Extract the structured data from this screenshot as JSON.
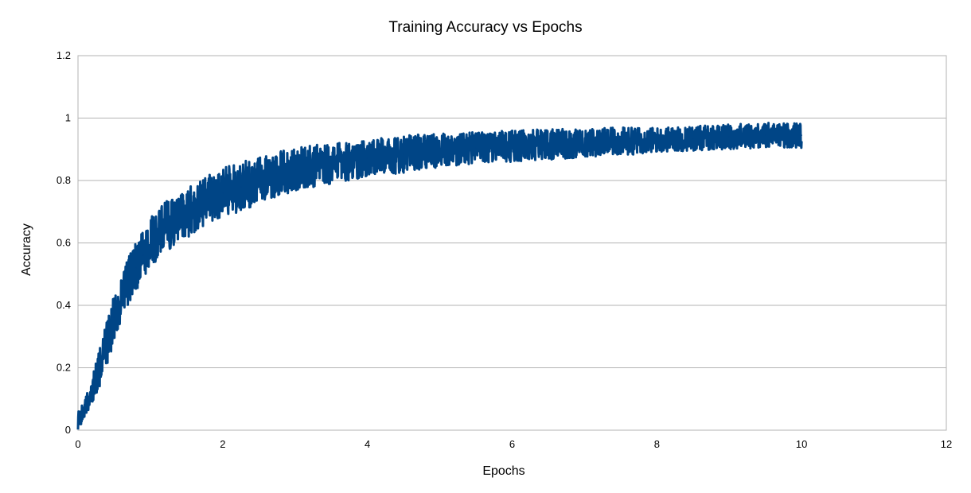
{
  "chart_data": {
    "type": "line",
    "title": "Training Accuracy vs Epochs",
    "xlabel": "Epochs",
    "ylabel": "Accuracy",
    "xlim": [
      0,
      12
    ],
    "ylim": [
      0,
      1.2
    ],
    "x_ticks": [
      0,
      2,
      4,
      6,
      8,
      10,
      12
    ],
    "y_ticks": [
      0,
      0.2,
      0.4,
      0.6,
      0.8,
      1,
      1.2
    ],
    "x_tick_labels": [
      "0",
      "2",
      "4",
      "6",
      "8",
      "10",
      "12"
    ],
    "y_tick_labels": [
      "0",
      "0.2",
      "0.4",
      "0.6",
      "0.8",
      "1",
      "1.2"
    ],
    "grid": "horizontal",
    "legend": "none",
    "series": [
      {
        "color": "#004586",
        "x": [
          0,
          0.1,
          0.2,
          0.3,
          0.4,
          0.5,
          0.6,
          0.7,
          0.8,
          0.9,
          1.0,
          1.2,
          1.4,
          1.6,
          1.8,
          2.0,
          2.25,
          2.5,
          2.75,
          3.0,
          3.5,
          4.0,
          4.5,
          5.0,
          5.5,
          6.0,
          6.5,
          7.0,
          7.5,
          8.0,
          8.5,
          9.0,
          9.5,
          10.0
        ],
        "y": [
          0.03,
          0.07,
          0.13,
          0.2,
          0.28,
          0.36,
          0.42,
          0.48,
          0.52,
          0.56,
          0.6,
          0.65,
          0.68,
          0.71,
          0.74,
          0.76,
          0.78,
          0.8,
          0.82,
          0.835,
          0.855,
          0.87,
          0.885,
          0.895,
          0.905,
          0.91,
          0.915,
          0.92,
          0.925,
          0.93,
          0.935,
          0.94,
          0.945,
          0.945
        ],
        "noise_band": [
          0.03,
          0.03,
          0.05,
          0.06,
          0.07,
          0.08,
          0.08,
          0.08,
          0.08,
          0.08,
          0.08,
          0.08,
          0.08,
          0.08,
          0.08,
          0.08,
          0.08,
          0.075,
          0.07,
          0.07,
          0.065,
          0.06,
          0.06,
          0.055,
          0.05,
          0.05,
          0.05,
          0.045,
          0.045,
          0.04,
          0.04,
          0.04,
          0.04,
          0.04
        ]
      }
    ]
  }
}
